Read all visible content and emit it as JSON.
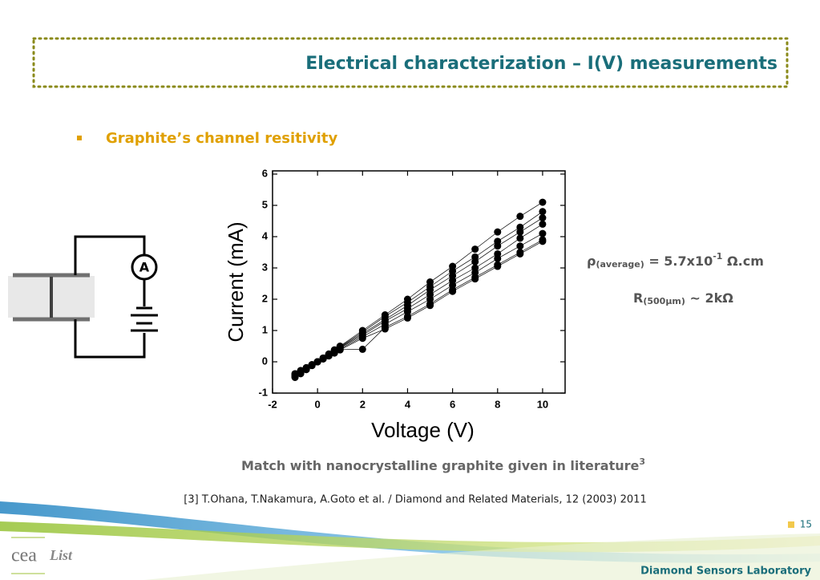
{
  "header": {
    "title": "Electrical characterization – I(V) measurements"
  },
  "bullet": "Graphite’s channel resitivity",
  "circuit": {
    "meter": "A"
  },
  "formula_rho": {
    "symbol": "ρ",
    "sub": "(average)",
    "main": " = 5.7x10",
    "sup": "-1",
    "unit": " Ω.cm"
  },
  "formula_r": {
    "symbol": "R",
    "sub": "(500µm)",
    "main": " ~ 2kΩ"
  },
  "statement": {
    "text": "Match with nanocrystalline graphite given in literature",
    "sup": "3"
  },
  "reference": "[3] T.Ohana, T.Nakamura, A.Goto et al. / Diamond and Related Materials, 12 (2003) 2011",
  "footer": {
    "page": "15",
    "lab": "Diamond Sensors Laboratory",
    "logo_left": "cea",
    "logo_right": "List"
  },
  "chart_data": {
    "type": "line",
    "x_label": "Voltage (V)",
    "y_label": "Current (mA)",
    "x": [
      -1,
      -0.75,
      -0.5,
      -0.25,
      0,
      0.25,
      0.5,
      0.75,
      1,
      2,
      3,
      4,
      5,
      6,
      7,
      8,
      9,
      10
    ],
    "series": [
      {
        "color": "#000000",
        "values": [
          -0.5,
          -0.38,
          -0.25,
          -0.12,
          0,
          0.12,
          0.25,
          0.38,
          0.5,
          1.0,
          1.5,
          2.0,
          2.55,
          3.05,
          3.6,
          4.15,
          4.65,
          5.1
        ]
      },
      {
        "color": "#000000",
        "values": [
          -0.48,
          -0.36,
          -0.24,
          -0.12,
          0,
          0.12,
          0.24,
          0.36,
          0.48,
          0.95,
          1.45,
          1.9,
          2.4,
          2.9,
          3.35,
          3.85,
          4.3,
          4.8
        ]
      },
      {
        "color": "#000000",
        "values": [
          -0.46,
          -0.35,
          -0.23,
          -0.11,
          0,
          0.11,
          0.23,
          0.35,
          0.46,
          0.9,
          1.35,
          1.8,
          2.3,
          2.75,
          3.2,
          3.7,
          4.15,
          4.6
        ]
      },
      {
        "color": "#000000",
        "values": [
          -0.44,
          -0.33,
          -0.22,
          -0.11,
          0,
          0.11,
          0.22,
          0.33,
          0.44,
          0.85,
          1.3,
          1.7,
          2.15,
          2.6,
          3.0,
          3.45,
          3.95,
          4.4
        ]
      },
      {
        "color": "#000000",
        "values": [
          -0.41,
          -0.31,
          -0.2,
          -0.1,
          0,
          0.1,
          0.2,
          0.31,
          0.41,
          0.8,
          1.2,
          1.6,
          2.0,
          2.45,
          2.85,
          3.3,
          3.7,
          4.1
        ]
      },
      {
        "color": "#000000",
        "values": [
          -0.39,
          -0.29,
          -0.19,
          -0.1,
          0,
          0.1,
          0.19,
          0.29,
          0.39,
          0.4,
          1.1,
          1.45,
          1.85,
          2.3,
          2.7,
          3.1,
          3.5,
          3.9
        ]
      },
      {
        "color": "#000000",
        "values": [
          -0.38,
          -0.28,
          -0.19,
          -0.09,
          0,
          0.09,
          0.19,
          0.28,
          0.38,
          0.75,
          1.05,
          1.4,
          1.8,
          2.25,
          2.65,
          3.05,
          3.45,
          3.85
        ]
      }
    ],
    "xlim": [
      -2,
      11
    ],
    "xticks": [
      -2,
      0,
      2,
      4,
      6,
      8,
      10
    ],
    "ylim": [
      -1,
      6
    ],
    "yticks": [
      -1,
      0,
      1,
      2,
      3,
      4,
      5,
      6
    ],
    "grid": false
  }
}
